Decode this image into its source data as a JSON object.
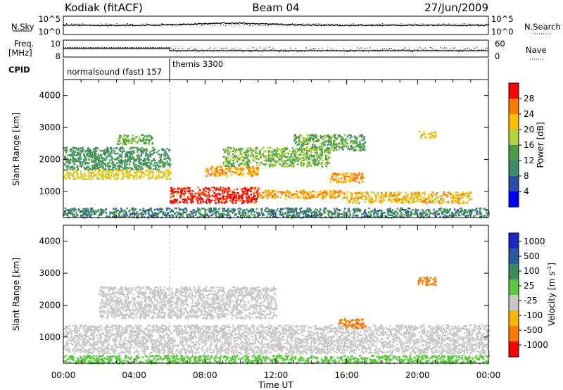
{
  "header": {
    "station": "Kodiak (fitACF)",
    "beam": "Beam 04",
    "date": "27/Jun/2009"
  },
  "noise_panel": {
    "left_label": "N.Sky",
    "right_label": "N.Search",
    "left_ticks": [
      "10^5",
      "10^0"
    ],
    "right_ticks": [
      "10^5",
      "10^0"
    ]
  },
  "freq_panel": {
    "left_label_line1": "Freq.",
    "left_label_line2": "[MHz]",
    "left_ticks": [
      "10",
      "8"
    ],
    "right_label": "Nave",
    "right_ticks": [
      "60",
      "0"
    ]
  },
  "cpid": {
    "label": "CPID",
    "modes": [
      "normalsound (fast) 157",
      "themis 3300"
    ]
  },
  "time_axis": {
    "ticks": [
      "00:00",
      "04:00",
      "08:00",
      "12:00",
      "16:00",
      "20:00",
      "00:00"
    ],
    "label": "Time UT"
  },
  "range_axis": {
    "label": "Slant Range [km]",
    "ticks": [
      "1000",
      "2000",
      "3000",
      "4000"
    ],
    "ylim_km": [
      180,
      4500
    ]
  },
  "power_colorbar": {
    "label": "Power [dB]",
    "ticks": [
      "4",
      "8",
      "12",
      "16",
      "20",
      "24",
      "28"
    ],
    "colors": [
      "#0000ff",
      "#2a4ea8",
      "#3d8a6a",
      "#4a9e4a",
      "#b4d23c",
      "#ffbe00",
      "#ff7800",
      "#ff0000"
    ]
  },
  "velocity_colorbar": {
    "label_text": "Velocity [m s",
    "label_exp": "-1",
    "label_close": "]",
    "ticks": [
      "1000",
      "500",
      "100",
      "25",
      "-25",
      "-100",
      "-500",
      "-1000"
    ],
    "colors": [
      "#1e28c8",
      "#2a5a9e",
      "#3c8c5a",
      "#5ac83c",
      "#c8c8c8",
      "#ffb400",
      "#ff7800",
      "#ff0000"
    ]
  },
  "chart_data": {
    "type": "heatmap",
    "x_unit": "hours UT",
    "xlim": [
      0,
      24
    ],
    "y_unit": "km",
    "ylim": [
      180,
      4500
    ],
    "mode_change_hour": 6,
    "power_regions_db": [
      {
        "t": [
          6.0,
          11.0
        ],
        "r": [
          650,
          1150
        ],
        "db": 30
      },
      {
        "t": [
          8.0,
          11.0
        ],
        "r": [
          1500,
          1800
        ],
        "db": 24
      },
      {
        "t": [
          11.0,
          16.0
        ],
        "r": [
          800,
          1050
        ],
        "db": 24
      },
      {
        "t": [
          16.0,
          23.0
        ],
        "r": [
          650,
          1000
        ],
        "db": 22
      },
      {
        "t": [
          15.0,
          17.0
        ],
        "r": [
          1300,
          1600
        ],
        "db": 24
      },
      {
        "t": [
          0.0,
          6.0
        ],
        "r": [
          1400,
          1700
        ],
        "db": 20
      },
      {
        "t": [
          0.0,
          6.0
        ],
        "r": [
          1700,
          2400
        ],
        "db": 12
      },
      {
        "t": [
          3.0,
          5.0
        ],
        "r": [
          2500,
          2800
        ],
        "db": 16
      },
      {
        "t": [
          9.0,
          15.0
        ],
        "r": [
          1800,
          2400
        ],
        "db": 16
      },
      {
        "t": [
          13.0,
          17.0
        ],
        "r": [
          2300,
          2800
        ],
        "db": 14
      },
      {
        "t": [
          20.0,
          21.0
        ],
        "r": [
          2700,
          2900
        ],
        "db": 20
      },
      {
        "t": [
          0.0,
          24.0
        ],
        "r": [
          200,
          500
        ],
        "db": 10
      }
    ],
    "velocity_regions_ms": [
      {
        "t": [
          0.0,
          24.0
        ],
        "r": [
          500,
          1400
        ],
        "v": 0
      },
      {
        "t": [
          2.0,
          12.0
        ],
        "r": [
          1600,
          2600
        ],
        "v": 0
      },
      {
        "t": [
          15.5,
          17.0
        ],
        "r": [
          1300,
          1600
        ],
        "v": -120
      },
      {
        "t": [
          20.0,
          21.0
        ],
        "r": [
          2650,
          2900
        ],
        "v": -150
      },
      {
        "t": [
          0.0,
          24.0
        ],
        "r": [
          200,
          450
        ],
        "v": 80
      }
    ]
  }
}
